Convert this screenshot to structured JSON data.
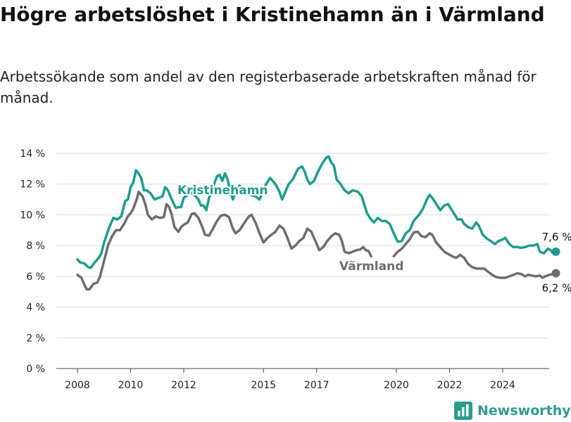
{
  "title": "Högre arbetslöshet i Kristinehamn än i Värmland",
  "subtitle": "Arbetssökande som andel av den registerbaserade arbetskraften månad för månad.",
  "brand": "Newsworthy",
  "colors": {
    "kristinehamn": "#1a9e8f",
    "varmland": "#6d6d70",
    "grid": "#d9d9d9",
    "brand": "#2a9d8f"
  },
  "chart_data": {
    "type": "line",
    "title": "Högre arbetslöshet i Kristinehamn än i Värmland",
    "subtitle": "Arbetssökande som andel av den registerbaserade arbetskraften månad för månad.",
    "xlabel": "",
    "ylabel": "",
    "xlim": [
      2007.5,
      2025.8
    ],
    "ylim": [
      0,
      14
    ],
    "y_ticks": [
      0,
      2,
      4,
      6,
      8,
      10,
      12,
      14
    ],
    "y_tick_labels": [
      "0 %",
      "2 %",
      "4 %",
      "6 %",
      "8 %",
      "10 %",
      "12 %",
      "14 %"
    ],
    "x_ticks": [
      2008,
      2010,
      2012,
      2015,
      2017,
      2020,
      2022,
      2024
    ],
    "x_tick_labels": [
      "2008",
      "2010",
      "2012",
      "2015",
      "2017",
      "2020",
      "2022",
      "2024"
    ],
    "grid": "horizontal",
    "legend": "inline labels on lines",
    "series": [
      {
        "name": "Kristinehamn",
        "color": "#1a9e8f",
        "end_label": "7,6 %",
        "points": [
          [
            2008.0,
            7.1
          ],
          [
            2008.1,
            6.9
          ],
          [
            2008.25,
            6.85
          ],
          [
            2008.4,
            6.6
          ],
          [
            2008.5,
            6.55
          ],
          [
            2008.65,
            6.9
          ],
          [
            2008.8,
            7.2
          ],
          [
            2008.9,
            7.5
          ],
          [
            2009.0,
            8.2
          ],
          [
            2009.2,
            9.2
          ],
          [
            2009.35,
            9.8
          ],
          [
            2009.5,
            9.7
          ],
          [
            2009.65,
            9.9
          ],
          [
            2009.8,
            10.9
          ],
          [
            2009.9,
            11.0
          ],
          [
            2010.0,
            11.8
          ],
          [
            2010.1,
            12.1
          ],
          [
            2010.2,
            12.9
          ],
          [
            2010.3,
            12.7
          ],
          [
            2010.4,
            12.4
          ],
          [
            2010.5,
            11.6
          ],
          [
            2010.6,
            11.6
          ],
          [
            2010.75,
            11.4
          ],
          [
            2010.9,
            11.0
          ],
          [
            2011.05,
            11.1
          ],
          [
            2011.2,
            11.2
          ],
          [
            2011.3,
            11.8
          ],
          [
            2011.4,
            11.6
          ],
          [
            2011.5,
            11.2
          ],
          [
            2011.6,
            10.8
          ],
          [
            2011.7,
            10.45
          ],
          [
            2011.8,
            10.5
          ],
          [
            2011.9,
            10.5
          ],
          [
            2012.0,
            11.1
          ],
          [
            2012.15,
            11.3
          ],
          [
            2012.3,
            11.4
          ],
          [
            2012.45,
            11.2
          ],
          [
            2012.55,
            11.0
          ],
          [
            2012.65,
            10.6
          ],
          [
            2012.75,
            10.6
          ],
          [
            2012.85,
            10.3
          ],
          [
            2012.95,
            11.1
          ],
          [
            2013.1,
            11.8
          ],
          [
            2013.25,
            12.5
          ],
          [
            2013.35,
            12.6
          ],
          [
            2013.45,
            12.2
          ],
          [
            2013.55,
            12.7
          ],
          [
            2013.65,
            12.3
          ],
          [
            2013.75,
            11.5
          ],
          [
            2013.85,
            11.0
          ],
          [
            2013.95,
            11.5
          ],
          [
            2014.1,
            11.9
          ],
          [
            2014.3,
            11.6
          ],
          [
            2014.5,
            11.3
          ],
          [
            2014.7,
            11.2
          ],
          [
            2014.85,
            11.0
          ],
          [
            2014.95,
            11.4
          ],
          [
            2015.1,
            12.0
          ],
          [
            2015.25,
            12.4
          ],
          [
            2015.45,
            12.0
          ],
          [
            2015.6,
            11.5
          ],
          [
            2015.7,
            11.0
          ],
          [
            2015.8,
            11.4
          ],
          [
            2015.95,
            12.0
          ],
          [
            2016.1,
            12.3
          ],
          [
            2016.3,
            13.0
          ],
          [
            2016.45,
            13.15
          ],
          [
            2016.55,
            12.8
          ],
          [
            2016.65,
            12.3
          ],
          [
            2016.75,
            12.0
          ],
          [
            2016.9,
            12.2
          ],
          [
            2017.05,
            12.8
          ],
          [
            2017.2,
            13.3
          ],
          [
            2017.35,
            13.7
          ],
          [
            2017.45,
            13.8
          ],
          [
            2017.55,
            13.4
          ],
          [
            2017.65,
            13.2
          ],
          [
            2017.75,
            12.3
          ],
          [
            2017.9,
            12.0
          ],
          [
            2018.05,
            11.6
          ],
          [
            2018.2,
            11.4
          ],
          [
            2018.35,
            11.6
          ],
          [
            2018.55,
            11.5
          ],
          [
            2018.7,
            11.2
          ],
          [
            2018.8,
            10.6
          ],
          [
            2018.9,
            10.1
          ],
          [
            2019.0,
            9.8
          ],
          [
            2019.15,
            9.5
          ],
          [
            2019.3,
            9.8
          ],
          [
            2019.45,
            9.6
          ],
          [
            2019.6,
            9.6
          ],
          [
            2019.75,
            9.4
          ],
          [
            2019.9,
            8.8
          ],
          [
            2020.05,
            8.25
          ],
          [
            2020.2,
            8.3
          ],
          [
            2020.35,
            8.8
          ],
          [
            2020.5,
            9.0
          ],
          [
            2020.65,
            9.6
          ],
          [
            2020.85,
            10.0
          ],
          [
            2021.0,
            10.4
          ],
          [
            2021.15,
            11.0
          ],
          [
            2021.25,
            11.3
          ],
          [
            2021.35,
            11.1
          ],
          [
            2021.5,
            10.7
          ],
          [
            2021.65,
            10.3
          ],
          [
            2021.8,
            10.6
          ],
          [
            2021.95,
            10.7
          ],
          [
            2022.05,
            10.4
          ],
          [
            2022.2,
            10.0
          ],
          [
            2022.3,
            9.7
          ],
          [
            2022.45,
            9.7
          ],
          [
            2022.55,
            9.4
          ],
          [
            2022.7,
            9.2
          ],
          [
            2022.85,
            9.1
          ],
          [
            2023.0,
            9.5
          ],
          [
            2023.1,
            9.3
          ],
          [
            2023.25,
            8.7
          ],
          [
            2023.4,
            8.45
          ],
          [
            2023.55,
            8.3
          ],
          [
            2023.7,
            8.1
          ],
          [
            2023.85,
            8.3
          ],
          [
            2024.0,
            8.4
          ],
          [
            2024.1,
            8.5
          ],
          [
            2024.25,
            8.1
          ],
          [
            2024.4,
            7.9
          ],
          [
            2024.55,
            7.9
          ],
          [
            2024.7,
            7.85
          ],
          [
            2024.85,
            7.9
          ],
          [
            2025.0,
            8.0
          ],
          [
            2025.15,
            8.0
          ],
          [
            2025.3,
            8.1
          ],
          [
            2025.4,
            7.6
          ],
          [
            2025.55,
            7.5
          ],
          [
            2025.7,
            7.8
          ],
          [
            2025.8,
            7.7
          ],
          [
            2025.9,
            7.5
          ],
          [
            2026.0,
            7.6
          ]
        ]
      },
      {
        "name": "Värmland",
        "color": "#6d6d70",
        "end_label": "6,2 %",
        "points": [
          [
            2008.0,
            6.1
          ],
          [
            2008.15,
            5.9
          ],
          [
            2008.25,
            5.5
          ],
          [
            2008.35,
            5.15
          ],
          [
            2008.45,
            5.15
          ],
          [
            2008.6,
            5.5
          ],
          [
            2008.75,
            5.6
          ],
          [
            2008.85,
            6.0
          ],
          [
            2009.0,
            7.0
          ],
          [
            2009.15,
            8.0
          ],
          [
            2009.3,
            8.6
          ],
          [
            2009.45,
            9.0
          ],
          [
            2009.6,
            9.0
          ],
          [
            2009.75,
            9.4
          ],
          [
            2009.9,
            9.9
          ],
          [
            2010.0,
            10.1
          ],
          [
            2010.1,
            10.4
          ],
          [
            2010.25,
            11.1
          ],
          [
            2010.3,
            11.5
          ],
          [
            2010.45,
            11.2
          ],
          [
            2010.55,
            10.7
          ],
          [
            2010.65,
            10.0
          ],
          [
            2010.8,
            9.7
          ],
          [
            2010.95,
            9.9
          ],
          [
            2011.1,
            9.8
          ],
          [
            2011.25,
            9.85
          ],
          [
            2011.35,
            10.7
          ],
          [
            2011.45,
            10.5
          ],
          [
            2011.55,
            10.0
          ],
          [
            2011.65,
            9.2
          ],
          [
            2011.8,
            8.9
          ],
          [
            2011.9,
            9.2
          ],
          [
            2012.0,
            9.35
          ],
          [
            2012.15,
            9.5
          ],
          [
            2012.3,
            10.05
          ],
          [
            2012.4,
            10.1
          ],
          [
            2012.55,
            9.8
          ],
          [
            2012.7,
            9.2
          ],
          [
            2012.8,
            8.7
          ],
          [
            2012.95,
            8.65
          ],
          [
            2013.1,
            9.1
          ],
          [
            2013.25,
            9.6
          ],
          [
            2013.4,
            9.95
          ],
          [
            2013.55,
            10.0
          ],
          [
            2013.7,
            9.85
          ],
          [
            2013.85,
            9.1
          ],
          [
            2013.95,
            8.8
          ],
          [
            2014.1,
            9.0
          ],
          [
            2014.25,
            9.4
          ],
          [
            2014.45,
            9.9
          ],
          [
            2014.55,
            10.0
          ],
          [
            2014.7,
            9.5
          ],
          [
            2014.85,
            8.8
          ],
          [
            2015.0,
            8.2
          ],
          [
            2015.15,
            8.5
          ],
          [
            2015.3,
            8.7
          ],
          [
            2015.45,
            8.9
          ],
          [
            2015.6,
            9.3
          ],
          [
            2015.75,
            9.1
          ],
          [
            2015.9,
            8.5
          ],
          [
            2016.05,
            7.8
          ],
          [
            2016.2,
            8.0
          ],
          [
            2016.35,
            8.3
          ],
          [
            2016.5,
            8.5
          ],
          [
            2016.65,
            9.1
          ],
          [
            2016.8,
            8.9
          ],
          [
            2016.95,
            8.3
          ],
          [
            2017.1,
            7.7
          ],
          [
            2017.25,
            7.9
          ],
          [
            2017.4,
            8.3
          ],
          [
            2017.55,
            8.6
          ],
          [
            2017.7,
            8.8
          ],
          [
            2017.85,
            8.7
          ],
          [
            2017.95,
            8.3
          ],
          [
            2018.05,
            7.6
          ],
          [
            2018.2,
            7.5
          ],
          [
            2018.35,
            7.6
          ],
          [
            2018.5,
            7.7
          ],
          [
            2018.65,
            7.75
          ],
          [
            2018.75,
            7.9
          ],
          [
            2018.85,
            7.7
          ],
          [
            2018.95,
            7.65
          ],
          [
            2019.05,
            7.3
          ],
          null,
          [
            2019.9,
            7.3
          ],
          [
            2020.05,
            7.6
          ],
          [
            2020.2,
            7.8
          ],
          [
            2020.35,
            8.1
          ],
          [
            2020.5,
            8.4
          ],
          [
            2020.65,
            8.85
          ],
          [
            2020.8,
            8.9
          ],
          [
            2020.95,
            8.6
          ],
          [
            2021.1,
            8.55
          ],
          [
            2021.25,
            8.8
          ],
          [
            2021.35,
            8.7
          ],
          [
            2021.5,
            8.2
          ],
          [
            2021.65,
            7.9
          ],
          [
            2021.8,
            7.6
          ],
          [
            2021.95,
            7.45
          ],
          [
            2022.1,
            7.3
          ],
          [
            2022.25,
            7.2
          ],
          [
            2022.4,
            7.4
          ],
          [
            2022.55,
            7.2
          ],
          [
            2022.7,
            6.8
          ],
          [
            2022.85,
            6.6
          ],
          [
            2023.0,
            6.5
          ],
          [
            2023.15,
            6.5
          ],
          [
            2023.3,
            6.5
          ],
          [
            2023.45,
            6.3
          ],
          [
            2023.6,
            6.1
          ],
          [
            2023.75,
            5.95
          ],
          [
            2023.9,
            5.9
          ],
          [
            2024.1,
            5.9
          ],
          [
            2024.25,
            6.0
          ],
          [
            2024.4,
            6.1
          ],
          [
            2024.55,
            6.2
          ],
          [
            2024.7,
            6.15
          ],
          [
            2024.85,
            6.0
          ],
          [
            2024.95,
            6.1
          ],
          [
            2025.1,
            6.05
          ],
          [
            2025.25,
            6.0
          ],
          [
            2025.4,
            6.05
          ],
          [
            2025.5,
            5.9
          ],
          [
            2025.6,
            6.0
          ],
          [
            2025.75,
            6.1
          ],
          [
            2025.9,
            6.15
          ],
          [
            2026.0,
            6.2
          ]
        ]
      }
    ]
  }
}
